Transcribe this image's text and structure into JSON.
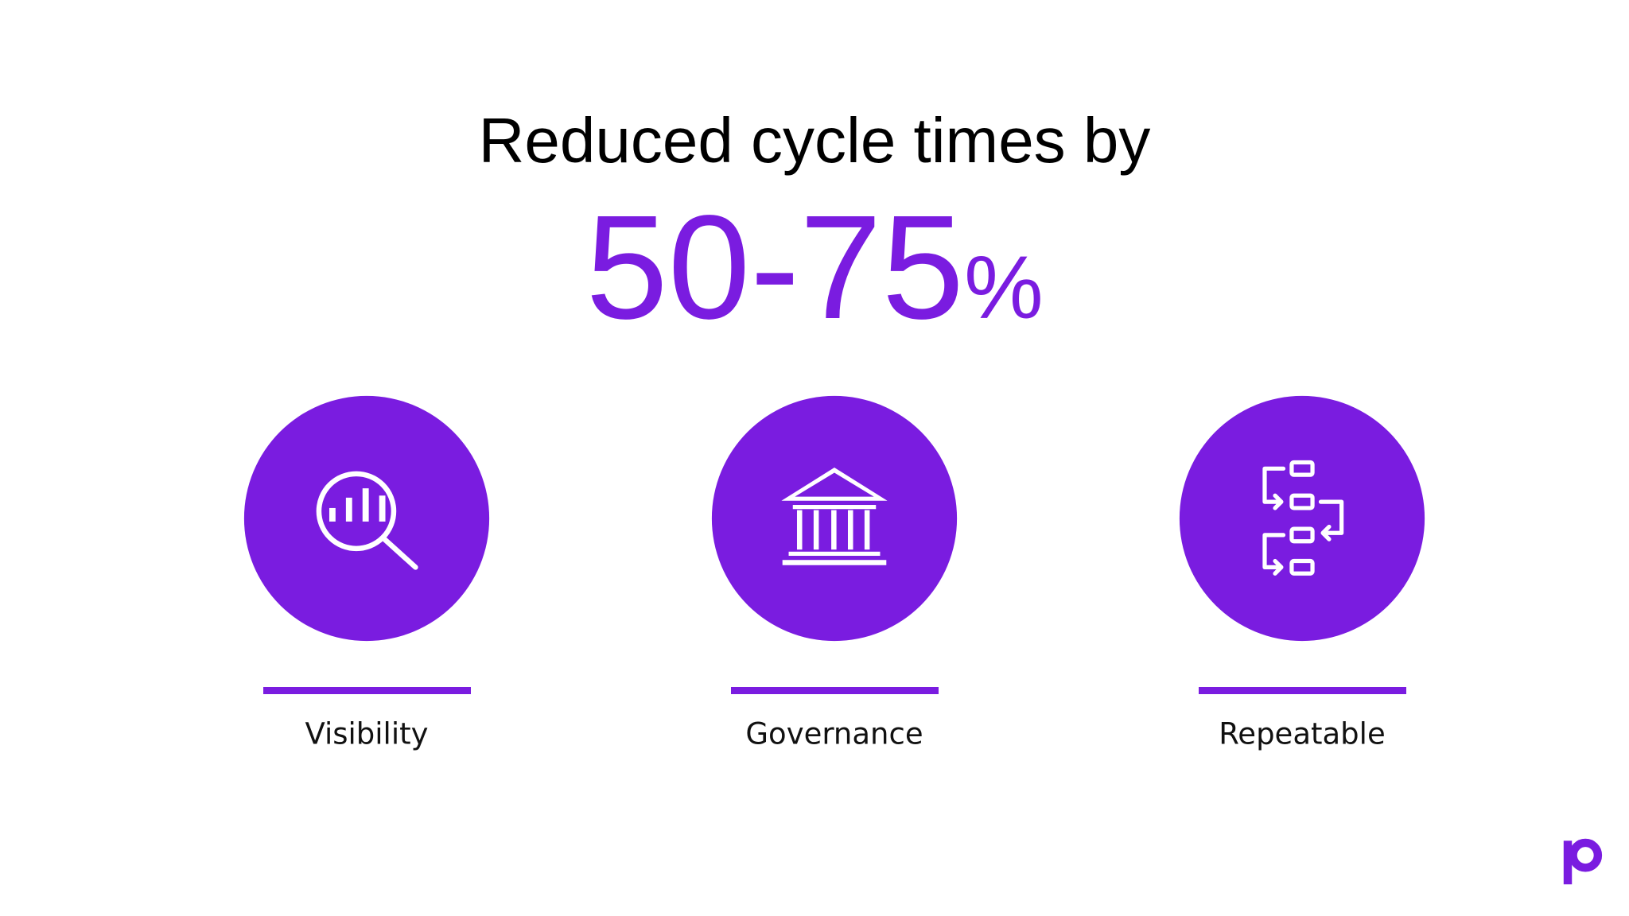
{
  "title": "Reduced cycle times by",
  "stat": {
    "value": "50-75",
    "unit": "%"
  },
  "items": [
    {
      "label": "Visibility"
    },
    {
      "label": "Governance"
    },
    {
      "label": "Repeatable"
    }
  ]
}
